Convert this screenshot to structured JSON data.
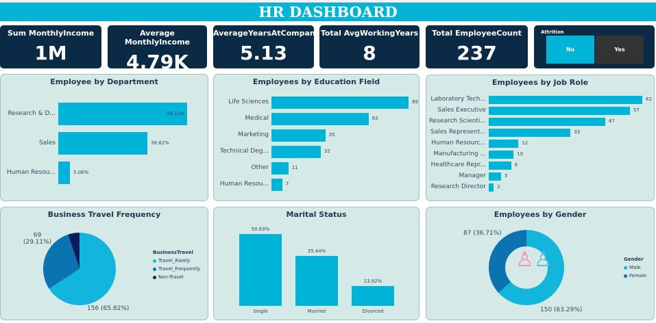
{
  "title": "HR DASHBOARD",
  "kpis": [
    {
      "label": "Sum MonthlyIncome",
      "value": "1M"
    },
    {
      "label": "Average MonthlyIncome",
      "value": "4.79K"
    },
    {
      "label": "AverageYearsAtCompany",
      "value": "5.13"
    },
    {
      "label": "Total AvgWorkingYears",
      "value": "8"
    },
    {
      "label": "Total EmployeeCount",
      "value": "237"
    }
  ],
  "attrition": {
    "label": "Attrition",
    "options": [
      "No",
      "Yes"
    ],
    "selected": "No"
  },
  "colors": {
    "accent": "#00b4d8",
    "navy": "#0b2a45",
    "mid": "#0a73b0",
    "dark": "#0b1e5c"
  },
  "chart_data": [
    {
      "id": "dept",
      "type": "bar",
      "title": "Employee by Department",
      "categories": [
        "Research & D...",
        "Sales",
        "Human Resou..."
      ],
      "values": [
        56.12,
        38.82,
        5.06
      ],
      "labels": [
        "56.12%",
        "38.82%",
        "5.06%"
      ]
    },
    {
      "id": "edu",
      "type": "bar",
      "title": "Employees by Education Field",
      "categories": [
        "Life Sciences",
        "Medical",
        "Marketing",
        "Technical Deg...",
        "Other",
        "Human Resou..."
      ],
      "values": [
        89,
        63,
        35,
        32,
        11,
        7
      ],
      "labels": [
        "89",
        "63",
        "35",
        "32",
        "11",
        "7"
      ]
    },
    {
      "id": "job",
      "type": "bar",
      "title": "Employees by Job Role",
      "categories": [
        "Laboratory Tech...",
        "Sales Executive",
        "Research Scienti...",
        "Sales Represent...",
        "Human Resourc...",
        "Manufacturing ...",
        "Healthcare Repr...",
        "Manager",
        "Research Director"
      ],
      "values": [
        62,
        57,
        47,
        33,
        12,
        10,
        9,
        5,
        2
      ],
      "labels": [
        "62",
        "57",
        "47",
        "33",
        "12",
        "10",
        "9",
        "5",
        "2"
      ]
    },
    {
      "id": "travel",
      "type": "pie",
      "title": "Business Travel Frequency",
      "legend_title": "BusinessTravel",
      "categories": [
        "Travel_Rarely",
        "Travel_Frequently",
        "Non-Travel"
      ],
      "values": [
        156,
        69,
        12
      ],
      "labels": [
        "156 (65.82%)",
        "69 (29.11%)",
        ""
      ]
    },
    {
      "id": "marital",
      "type": "bar",
      "title": "Marital Status",
      "categories": [
        "Single",
        "Married",
        "Divorced"
      ],
      "values": [
        50.63,
        35.44,
        13.92
      ],
      "labels": [
        "50.63%",
        "35.44%",
        "13.92%"
      ]
    },
    {
      "id": "gender",
      "type": "pie",
      "title": "Employees by Gender",
      "legend_title": "Gender",
      "categories": [
        "Male",
        "Female"
      ],
      "values": [
        150,
        87
      ],
      "labels": [
        "150 (63.29%)",
        "87 (36.71%)"
      ]
    }
  ]
}
